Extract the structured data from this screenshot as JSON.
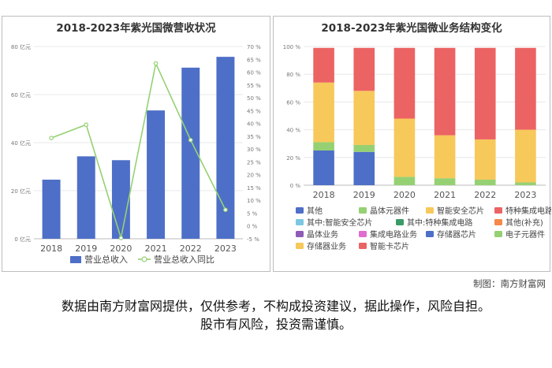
{
  "charts": [
    {
      "title": "2018-2023年紫光国微营收状况"
    },
    {
      "title": "2018-2023年紫光国微业务结构变化"
    }
  ],
  "chart_data": [
    {
      "type": "bar",
      "title": "2018-2023年紫光国微营收状况",
      "categories": [
        "2018",
        "2019",
        "2020",
        "2021",
        "2022",
        "2023"
      ],
      "series": [
        {
          "name": "营业总收入",
          "kind": "bar",
          "axis": "left",
          "color": "#4e6fc7",
          "values": [
            24.6,
            34.3,
            32.7,
            53.4,
            71.2,
            75.7
          ]
        },
        {
          "name": "营业总收入同比",
          "kind": "line",
          "axis": "right",
          "color": "#95d173",
          "values": [
            34.3,
            39.5,
            -4.7,
            63.4,
            33.5,
            6.3
          ]
        }
      ],
      "y_left": {
        "min": 0,
        "max": 80,
        "step": 20,
        "unit": "亿元"
      },
      "y_right": {
        "min": -5,
        "max": 70,
        "step": 5,
        "unit": "%"
      },
      "legend_position": "bottom"
    },
    {
      "type": "bar",
      "stacked": true,
      "title": "2018-2023年紫光国微业务结构变化",
      "categories": [
        "2018",
        "2019",
        "2020",
        "2021",
        "2022",
        "2023"
      ],
      "y_axis": {
        "min": 0,
        "max": 100,
        "step": 20,
        "unit": "%"
      },
      "series": [
        {
          "name": "其他",
          "color": "#4e6fc7",
          "values": [
            0,
            0,
            0,
            0,
            0,
            0
          ]
        },
        {
          "name": "晶体元器件",
          "color": "#95d173",
          "values": [
            0,
            0,
            0,
            0,
            0,
            0
          ]
        },
        {
          "name": "智能安全芯片",
          "color": "#f7c85a",
          "values": [
            0,
            0,
            0,
            0,
            0,
            0
          ]
        },
        {
          "name": "特种集成电路",
          "color": "#ec6363",
          "values": [
            0,
            0,
            0,
            0,
            0,
            0
          ]
        },
        {
          "name": "其中:智能安全芯片",
          "color": "#7cc8e3",
          "values": [
            0,
            0,
            0,
            0,
            0,
            0
          ]
        },
        {
          "name": "其中:特种集成电路",
          "color": "#3a9b69",
          "values": [
            0,
            0,
            0,
            0,
            0,
            0
          ]
        },
        {
          "name": "其他(补充)",
          "color": "#f4894b",
          "values": [
            0,
            0,
            0,
            0,
            0,
            0
          ]
        },
        {
          "name": "晶体业务",
          "color": "#8e5cb8",
          "values": [
            0,
            0,
            0,
            0,
            0,
            0
          ]
        },
        {
          "name": "集成电路业务",
          "color": "#e06ccf",
          "values": [
            0,
            0,
            0,
            0,
            0,
            0
          ]
        },
        {
          "name": "存储器芯片",
          "color": "#4e6fc7",
          "values": [
            25,
            24,
            0,
            0,
            0,
            0
          ]
        },
        {
          "name": "电子元器件",
          "color": "#95d173",
          "values": [
            6,
            5,
            6,
            5,
            4,
            2
          ]
        },
        {
          "name": "存储器业务",
          "color": "#f7c85a",
          "values": [
            0,
            0,
            0,
            0,
            0,
            0
          ]
        },
        {
          "name": "智能卡芯片",
          "color": "#ec6363",
          "values": [
            0,
            0,
            0,
            0,
            0,
            0
          ]
        },
        {
          "name": "存储器业务",
          "color": "#f7c85a",
          "values": [
            43,
            39,
            42,
            31,
            29,
            38
          ]
        },
        {
          "name": "智能卡芯片",
          "color": "#ec6363",
          "values": [
            25,
            31,
            51,
            63,
            66,
            59
          ]
        }
      ],
      "legend": [
        {
          "name": "其他",
          "color": "#4e6fc7"
        },
        {
          "name": "晶体元器件",
          "color": "#95d173"
        },
        {
          "name": "智能安全芯片",
          "color": "#f7c85a"
        },
        {
          "name": "特种集成电路",
          "color": "#ec6363"
        },
        {
          "name": "其中:智能安全芯片",
          "color": "#7cc8e3"
        },
        {
          "name": "其中:特种集成电路",
          "color": "#3a9b69"
        },
        {
          "name": "其他(补充)",
          "color": "#f4894b"
        },
        {
          "name": "晶体业务",
          "color": "#8e5cb8"
        },
        {
          "name": "集成电路业务",
          "color": "#e06ccf"
        },
        {
          "name": "存储器芯片",
          "color": "#4e6fc7"
        },
        {
          "name": "电子元器件",
          "color": "#95d173"
        },
        {
          "name": "存储器业务",
          "color": "#f7c85a"
        },
        {
          "name": "智能卡芯片",
          "color": "#ec6363"
        }
      ],
      "legend_position": "bottom"
    }
  ],
  "footer": {
    "credit": "制图：南方财富网",
    "disclaimer_line1": "数据由南方财富网提供，仅供参考，不构成投资建议，据此操作，风险自担。",
    "disclaimer_line2": "股市有风险，投资需谨慎。"
  }
}
